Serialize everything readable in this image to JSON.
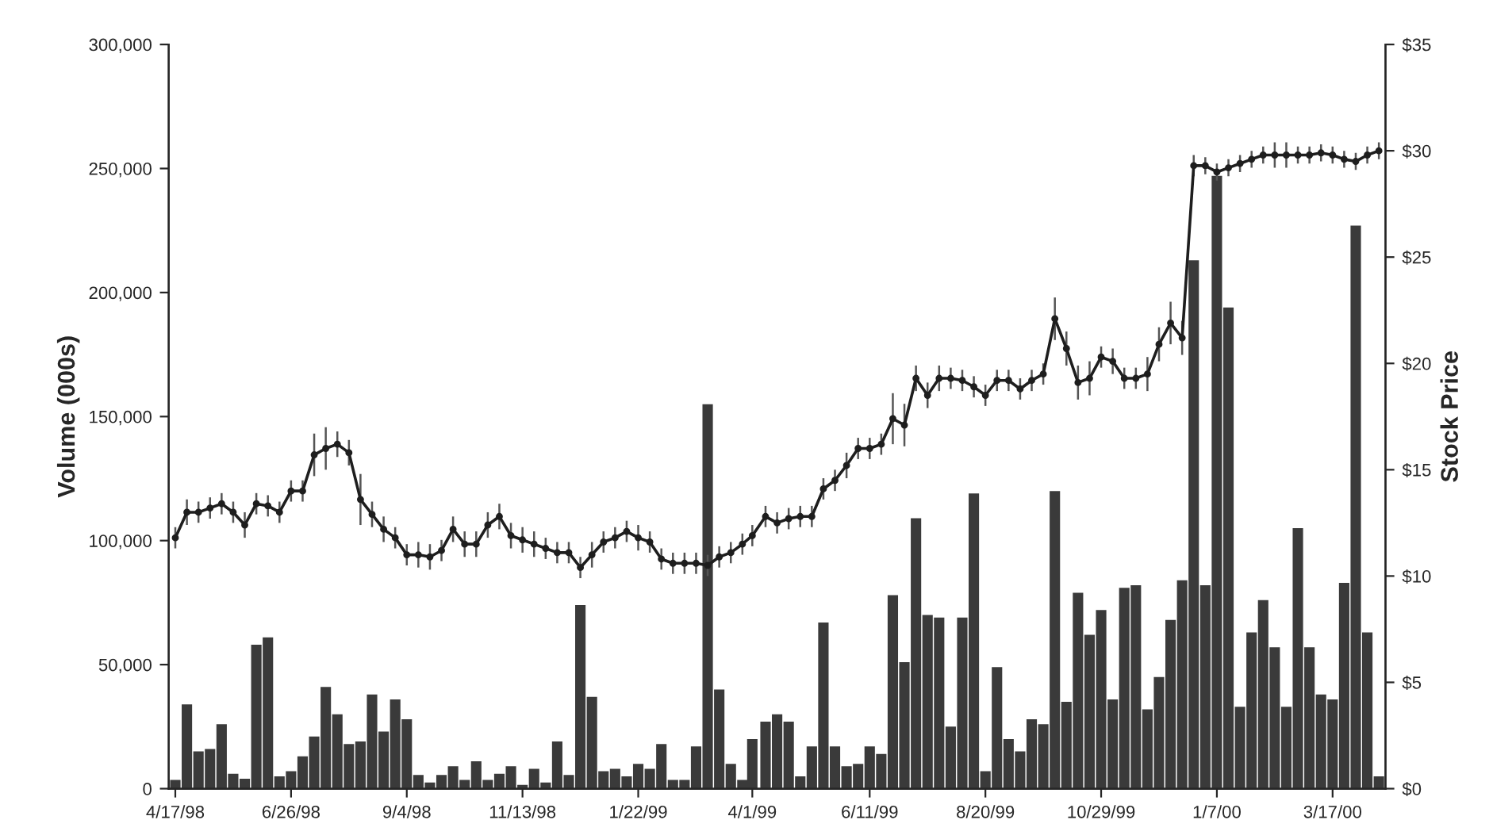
{
  "chart_data": {
    "type": "bar",
    "ylabel": "Volume (000s)",
    "y2label": "Stock Price",
    "x": [
      "1998-04-17",
      "1998-04-24",
      "1998-05-01",
      "1998-05-08",
      "1998-05-15",
      "1998-05-22",
      "1998-05-29",
      "1998-06-05",
      "1998-06-12",
      "1998-06-19",
      "1998-06-26",
      "1998-07-03",
      "1998-07-10",
      "1998-07-17",
      "1998-07-24",
      "1998-07-31",
      "1998-08-07",
      "1998-08-14",
      "1998-08-21",
      "1998-08-28",
      "1998-09-04",
      "1998-09-11",
      "1998-09-18",
      "1998-09-25",
      "1998-10-02",
      "1998-10-09",
      "1998-10-16",
      "1998-10-23",
      "1998-10-30",
      "1998-11-06",
      "1998-11-13",
      "1998-11-20",
      "1998-11-27",
      "1998-12-04",
      "1998-12-11",
      "1998-12-18",
      "1998-12-25",
      "1999-01-01",
      "1999-01-08",
      "1999-01-15",
      "1999-01-22",
      "1999-01-29",
      "1999-02-05",
      "1999-02-12",
      "1999-02-19",
      "1999-02-26",
      "1999-03-05",
      "1999-03-12",
      "1999-03-19",
      "1999-03-26",
      "1999-04-01",
      "1999-04-09",
      "1999-04-16",
      "1999-04-23",
      "1999-04-30",
      "1999-05-07",
      "1999-05-14",
      "1999-05-21",
      "1999-05-28",
      "1999-06-04",
      "1999-06-11",
      "1999-06-18",
      "1999-06-25",
      "1999-07-02",
      "1999-07-09",
      "1999-07-16",
      "1999-07-23",
      "1999-07-30",
      "1999-08-06",
      "1999-08-13",
      "1999-08-20",
      "1999-08-27",
      "1999-09-03",
      "1999-09-10",
      "1999-09-17",
      "1999-09-24",
      "1999-10-01",
      "1999-10-08",
      "1999-10-15",
      "1999-10-22",
      "1999-10-29",
      "1999-11-05",
      "1999-11-12",
      "1999-11-19",
      "1999-11-26",
      "1999-12-03",
      "1999-12-10",
      "1999-12-17",
      "1999-12-24",
      "1999-12-31",
      "2000-01-07",
      "2000-01-14",
      "2000-01-21",
      "2000-01-28",
      "2000-02-04",
      "2000-02-11",
      "2000-02-18",
      "2000-02-25",
      "2000-03-03",
      "2000-03-10",
      "2000-03-17",
      "2000-03-24",
      "2000-03-31",
      "2000-04-07",
      "2000-04-14"
    ],
    "series": [
      {
        "color": "#3a3a3a",
        "values": [
          3500,
          34000,
          15000,
          16000,
          26000,
          6000,
          4000,
          58000,
          61000,
          5000,
          7000,
          13000,
          21000,
          41000,
          30000,
          18000,
          19000,
          38000,
          23000,
          36000,
          28000,
          5500,
          2500,
          5500,
          9000,
          3500,
          11000,
          3500,
          6000,
          9000,
          1500,
          8000,
          2500,
          19000,
          5500,
          74000,
          37000,
          7000,
          8000,
          5000,
          10000,
          8000,
          18000,
          3500,
          3500,
          17000,
          155000,
          40000,
          10000,
          3500,
          20000,
          27000,
          30000,
          27000,
          5000,
          17000,
          67000,
          17000,
          9000,
          10000,
          17000,
          14000,
          78000,
          51000,
          109000,
          70000,
          69000,
          25000,
          69000,
          119000,
          7000,
          49000,
          20000,
          15000,
          28000,
          26000,
          120000,
          35000,
          79000,
          62000,
          72000,
          36000,
          81000,
          82000,
          32000,
          45000,
          68000,
          84000,
          213000,
          82000,
          247000,
          194000,
          33000,
          63000,
          76000,
          57000,
          33000,
          105000,
          57000,
          38000,
          36000,
          83000,
          227000,
          63000,
          5000
        ]
      },
      {
        "type": "line",
        "axis": "y2",
        "color": "#1e1e1e",
        "values": [
          11.8,
          13.0,
          13.0,
          13.2,
          13.4,
          13.0,
          12.4,
          13.4,
          13.3,
          13.0,
          14.0,
          14.0,
          15.7,
          16.0,
          16.2,
          15.8,
          13.6,
          12.9,
          12.2,
          11.8,
          11.0,
          11.0,
          10.9,
          11.2,
          12.2,
          11.5,
          11.5,
          12.4,
          12.8,
          11.9,
          11.7,
          11.5,
          11.3,
          11.1,
          11.1,
          10.4,
          11.0,
          11.6,
          11.8,
          12.1,
          11.8,
          11.6,
          10.8,
          10.6,
          10.6,
          10.6,
          10.5,
          10.9,
          11.1,
          11.5,
          11.9,
          12.8,
          12.5,
          12.7,
          12.8,
          12.8,
          14.1,
          14.5,
          15.2,
          16.0,
          16.0,
          16.2,
          17.4,
          17.1,
          19.3,
          18.5,
          19.3,
          19.3,
          19.2,
          18.9,
          18.5,
          19.2,
          19.2,
          18.8,
          19.2,
          19.5,
          22.1,
          20.7,
          19.1,
          19.3,
          20.3,
          20.1,
          19.3,
          19.3,
          19.5,
          20.9,
          21.9,
          21.2,
          29.3,
          29.3,
          29.0,
          29.2,
          29.4,
          29.6,
          29.8,
          29.8,
          29.8,
          29.8,
          29.8,
          29.9,
          29.8,
          29.6,
          29.5,
          29.8,
          30.0
        ],
        "errors": [
          0.5,
          0.6,
          0.5,
          0.5,
          0.5,
          0.5,
          0.6,
          0.5,
          0.5,
          0.5,
          0.5,
          0.5,
          1.0,
          1.0,
          0.6,
          0.6,
          1.2,
          0.6,
          0.6,
          0.5,
          0.5,
          0.6,
          0.6,
          0.5,
          0.6,
          0.6,
          0.6,
          0.6,
          0.6,
          0.6,
          0.6,
          0.6,
          0.5,
          0.5,
          0.5,
          0.5,
          0.6,
          0.5,
          0.5,
          0.5,
          0.6,
          0.5,
          0.5,
          0.5,
          0.5,
          0.5,
          0.5,
          0.5,
          0.5,
          0.5,
          0.5,
          0.5,
          0.5,
          0.5,
          0.5,
          0.5,
          0.5,
          0.5,
          0.6,
          0.5,
          0.5,
          0.5,
          1.2,
          1.0,
          0.6,
          0.6,
          0.6,
          0.5,
          0.5,
          0.5,
          0.5,
          0.5,
          0.5,
          0.5,
          0.5,
          0.5,
          1.0,
          0.8,
          0.8,
          0.8,
          0.5,
          0.6,
          0.5,
          0.5,
          0.8,
          0.8,
          1.0,
          0.8,
          0.5,
          0.4,
          0.4,
          0.4,
          0.4,
          0.4,
          0.4,
          0.6,
          0.6,
          0.4,
          0.4,
          0.4,
          0.4,
          0.4,
          0.4,
          0.4,
          0.4
        ]
      }
    ],
    "ylim": [
      0,
      300000
    ],
    "yticks": [
      0,
      {
        "value": 50000,
        "label": "50,000"
      },
      {
        "value": 100000,
        "label": "100,000"
      },
      {
        "value": 150000,
        "label": "150,000"
      },
      {
        "value": 200000,
        "label": "200,000"
      },
      {
        "value": 250000,
        "label": "250,000"
      },
      {
        "value": 300000,
        "label": "300,000"
      }
    ],
    "y2lim": [
      0,
      35
    ],
    "y2ticks": [
      {
        "value": 0,
        "label": "$0"
      },
      {
        "value": 5,
        "label": "$5"
      },
      {
        "value": 10,
        "label": "$10"
      },
      {
        "value": 15,
        "label": "$15"
      },
      {
        "value": 20,
        "label": "$20"
      },
      {
        "value": 25,
        "label": "$25"
      },
      {
        "value": 30,
        "label": "$30"
      },
      {
        "value": 35,
        "label": "$35"
      }
    ],
    "xlim": [
      "1998-04-13",
      "2000-04-18"
    ],
    "xticks": [
      {
        "value": "1998-04-17",
        "label": "4/17/98"
      },
      {
        "value": "1998-06-26",
        "label": "6/26/98"
      },
      {
        "value": "1998-09-04",
        "label": "9/4/98"
      },
      {
        "value": "1998-11-13",
        "label": "11/13/98"
      },
      {
        "value": "1999-01-22",
        "label": "1/22/99"
      },
      {
        "value": "1999-04-01",
        "label": "4/1/99"
      },
      {
        "value": "1999-06-11",
        "label": "6/11/99"
      },
      {
        "value": "1999-08-20",
        "label": "8/20/99"
      },
      {
        "value": "1999-10-29",
        "label": "10/29/99"
      },
      {
        "value": "2000-01-07",
        "label": "1/7/00"
      },
      {
        "value": "2000-03-17",
        "label": "3/17/00"
      }
    ],
    "marker": "circle",
    "line_style": "solid",
    "grid": false,
    "legend": false
  }
}
